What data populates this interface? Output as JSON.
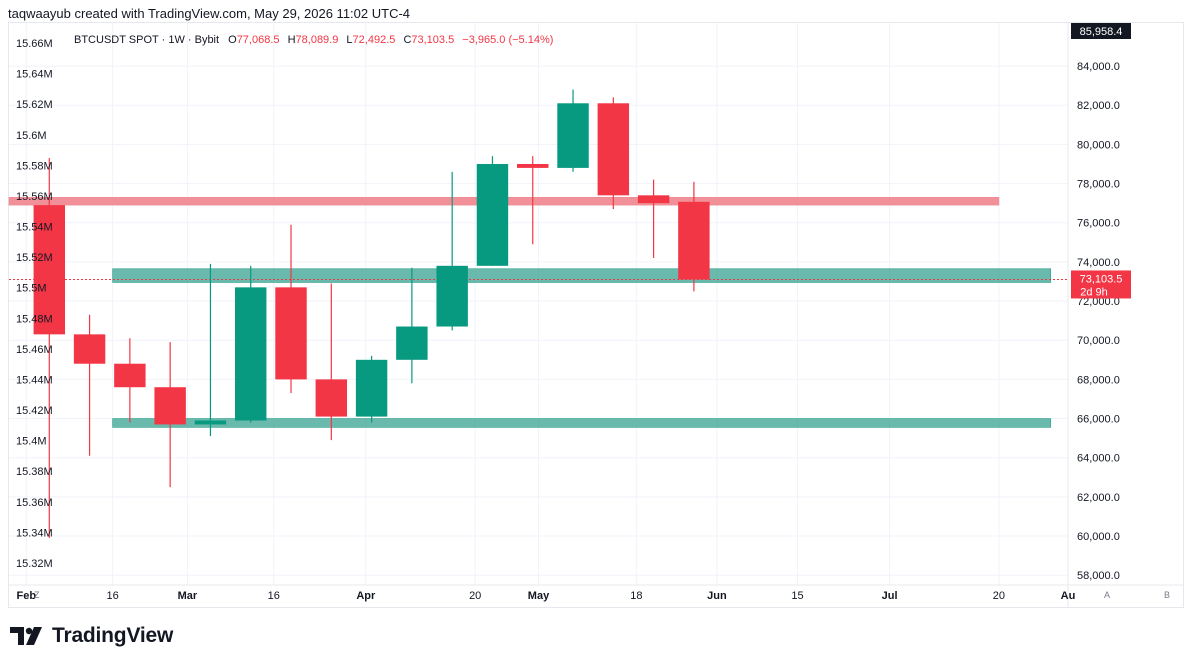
{
  "byline": "taqwaayub created with TradingView.com, May 29, 2026 11:02 UTC-4",
  "legend": {
    "symbol": "BTCUSDT SPOT · 1W · Bybit",
    "o_label": "O",
    "o_value": "77,068.5",
    "h_label": "H",
    "h_value": "78,089.9",
    "l_label": "L",
    "l_value": "72,492.5",
    "c_label": "C",
    "c_value": "73,103.5",
    "change": "−3,965.0 (−5.14%)"
  },
  "price_tags": {
    "top_value": "85,958.4",
    "last_value": "73,103.5",
    "countdown": "2d 9h"
  },
  "corner_buttons": {
    "left": "Z",
    "mid": "A",
    "right": "B"
  },
  "brand": "TradingView",
  "colors": {
    "up": "#089981",
    "down": "#f23645",
    "resistance_zone": "#f08a93",
    "support_zone": "#2a9d8a"
  },
  "chart_data": {
    "type": "candlestick",
    "symbol": "BTCUSDT SPOT",
    "interval": "1W",
    "exchange": "Bybit",
    "right_axis": {
      "ticks": [
        "84,000.0",
        "82,000.0",
        "80,000.0",
        "78,000.0",
        "76,000.0",
        "74,000.0",
        "72,000.0",
        "70,000.0",
        "68,000.0",
        "66,000.0",
        "64,000.0",
        "62,000.0",
        "60,000.0",
        "58,000.0"
      ],
      "ylim": [
        57500,
        86200
      ]
    },
    "left_axis": {
      "ticks": [
        "15.66M",
        "15.64M",
        "15.62M",
        "15.6M",
        "15.58M",
        "15.56M",
        "15.54M",
        "15.52M",
        "15.5M",
        "15.48M",
        "15.46M",
        "15.44M",
        "15.42M",
        "15.4M",
        "15.38M",
        "15.36M",
        "15.34M",
        "15.32M"
      ]
    },
    "x_axis": {
      "ticks": [
        {
          "date": "2026-02-01",
          "label": "Feb",
          "bold": true
        },
        {
          "date": "2026-02-16",
          "label": "16",
          "bold": false
        },
        {
          "date": "2026-03-01",
          "label": "Mar",
          "bold": true
        },
        {
          "date": "2026-03-16",
          "label": "16",
          "bold": false
        },
        {
          "date": "2026-04-01",
          "label": "Apr",
          "bold": true
        },
        {
          "date": "2026-04-20",
          "label": "20",
          "bold": false
        },
        {
          "date": "2026-05-01",
          "label": "May",
          "bold": true
        },
        {
          "date": "2026-05-18",
          "label": "18",
          "bold": false
        },
        {
          "date": "2026-06-01",
          "label": "Jun",
          "bold": true
        },
        {
          "date": "2026-06-15",
          "label": "15",
          "bold": false
        },
        {
          "date": "2026-07-01",
          "label": "Jul",
          "bold": true
        },
        {
          "date": "2026-07-20",
          "label": "20",
          "bold": false
        },
        {
          "date": "2026-08-01",
          "label": "Au",
          "bold": true
        }
      ],
      "xlim": [
        "2026-01-29",
        "2026-08-01"
      ]
    },
    "candles": [
      {
        "date": "2026-02-02",
        "open": 76900,
        "high": 79300,
        "low": 59900,
        "close": 70300
      },
      {
        "date": "2026-02-09",
        "open": 70300,
        "high": 71300,
        "low": 64100,
        "close": 68800
      },
      {
        "date": "2026-02-16",
        "open": 68800,
        "high": 70100,
        "low": 65800,
        "close": 67600
      },
      {
        "date": "2026-02-23",
        "open": 67600,
        "high": 69900,
        "low": 62500,
        "close": 65700
      },
      {
        "date": "2026-03-02",
        "open": 65700,
        "high": 73900,
        "low": 65100,
        "close": 65900
      },
      {
        "date": "2026-03-09",
        "open": 65900,
        "high": 73800,
        "low": 65800,
        "close": 72700
      },
      {
        "date": "2026-03-16",
        "open": 72700,
        "high": 75900,
        "low": 67300,
        "close": 68000
      },
      {
        "date": "2026-03-23",
        "open": 68000,
        "high": 72900,
        "low": 64900,
        "close": 66100
      },
      {
        "date": "2026-03-30",
        "open": 66100,
        "high": 69200,
        "low": 65800,
        "close": 69000
      },
      {
        "date": "2026-04-06",
        "open": 69000,
        "high": 73700,
        "low": 67800,
        "close": 70700
      },
      {
        "date": "2026-04-13",
        "open": 70700,
        "high": 78600,
        "low": 70500,
        "close": 73800
      },
      {
        "date": "2026-04-20",
        "open": 73800,
        "high": 79400,
        "low": 73800,
        "close": 79000
      },
      {
        "date": "2026-04-27",
        "open": 79000,
        "high": 79400,
        "low": 74900,
        "close": 78800
      },
      {
        "date": "2026-05-04",
        "open": 78800,
        "high": 82800,
        "low": 78600,
        "close": 82100
      },
      {
        "date": "2026-05-11",
        "open": 82100,
        "high": 82400,
        "low": 76700,
        "close": 77400
      },
      {
        "date": "2026-05-18",
        "open": 77400,
        "high": 78200,
        "low": 74200,
        "close": 77000
      },
      {
        "date": "2026-05-25",
        "open": 77068.5,
        "high": 78089.9,
        "low": 72492.5,
        "close": 73103.5
      }
    ],
    "zones": [
      {
        "kind": "resistance",
        "start": "2026-01-29",
        "end": "2026-07-20",
        "top": 77300,
        "bottom": 76900
      },
      {
        "kind": "support",
        "start": "2026-02-16",
        "end": "2026-07-29",
        "top": 73650,
        "bottom": 72950
      },
      {
        "kind": "support",
        "start": "2026-02-16",
        "end": "2026-07-29",
        "top": 66000,
        "bottom": 65550
      }
    ],
    "last_price": 73103.5,
    "grid": true
  }
}
